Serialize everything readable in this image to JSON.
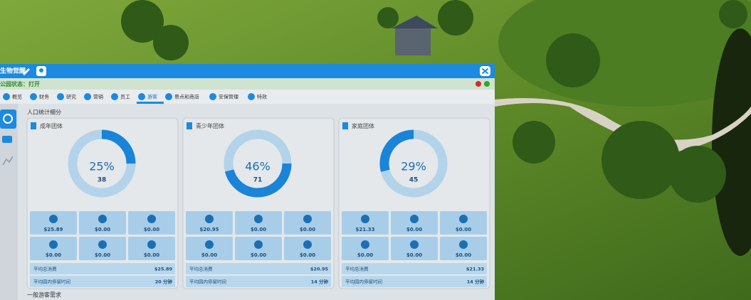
{
  "window": {
    "title": "生物觉醒",
    "status": "公园状态：打开"
  },
  "tabs": [
    "概览",
    "财务",
    "研究",
    "营销",
    "员工",
    "游客",
    "景点和商店",
    "安保管理",
    "特效"
  ],
  "section_title": "人口统计细分",
  "groups": [
    {
      "name": "成年团体",
      "percent": {
        "value": 25,
        "label": "25%"
      },
      "count": 38,
      "spending": [
        "$25.89",
        "$0.00",
        "$0.00",
        "$0.00",
        "$0.00",
        "$0.00"
      ],
      "avg_spend_label": "平均总消费",
      "avg_spend": "$25.89",
      "avg_stay_label": "平均园内停留时间",
      "avg_stay": "20 分钟"
    },
    {
      "name": "青少年团体",
      "percent": {
        "value": 46,
        "label": "46%"
      },
      "count": 71,
      "spending": [
        "$20.95",
        "$0.00",
        "$0.00",
        "$0.00",
        "$0.00",
        "$0.00"
      ],
      "avg_spend_label": "平均总消费",
      "avg_spend": "$20.95",
      "avg_stay_label": "平均园内停留时间",
      "avg_stay": "14 分钟"
    },
    {
      "name": "家庭团体",
      "percent": {
        "value": 29,
        "label": "29%"
      },
      "count": 45,
      "spending": [
        "$21.33",
        "$0.00",
        "$0.00",
        "$0.00",
        "$0.00",
        "$0.00"
      ],
      "avg_spend_label": "平均总消费",
      "avg_spend": "$21.33",
      "avg_stay_label": "平均园内停留时间",
      "avg_stay": "14 分钟"
    }
  ],
  "footer_title": "一般游客需求"
}
